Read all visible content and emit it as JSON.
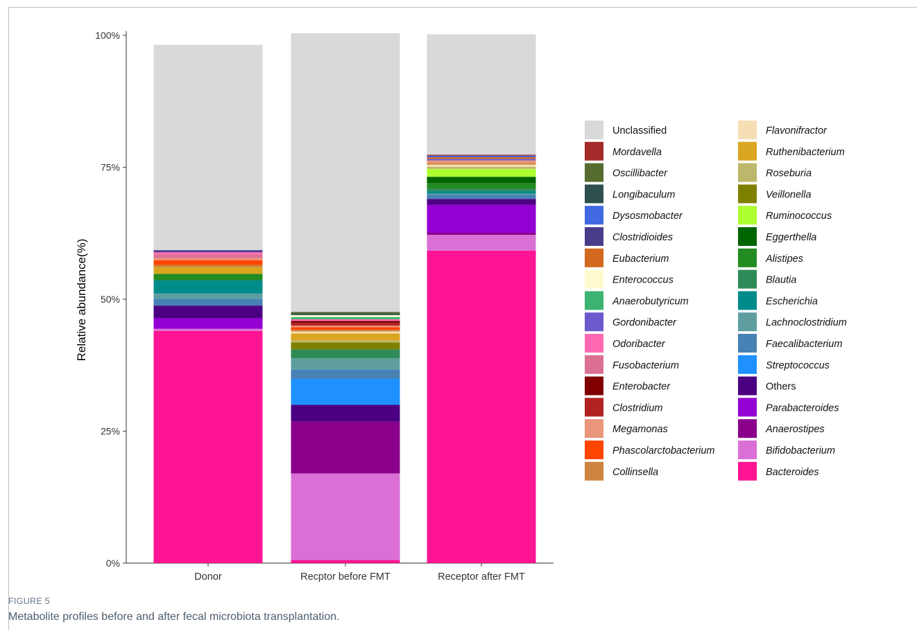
{
  "figure": {
    "label": "FIGURE 5",
    "caption": "Metabolite profiles before and after fecal microbiota transplantation."
  },
  "chart_data": {
    "type": "bar",
    "stacked": true,
    "title": "",
    "xlabel": "",
    "ylabel": "Relative abundance(%)",
    "ylim": [
      0,
      100
    ],
    "yticks": [
      0,
      25,
      50,
      75,
      100
    ],
    "ytick_labels": [
      "0%",
      "25%",
      "50%",
      "75%",
      "100%"
    ],
    "legend_position": "right",
    "categories": [
      "Donor",
      "Recptor before FMT",
      "Receptor after FMT"
    ],
    "series": [
      {
        "name": "Bacteroides",
        "color": "#FF1493",
        "italic": true,
        "values": [
          44.0,
          0.6,
          59.2
        ]
      },
      {
        "name": "Bifidobacterium",
        "color": "#DA70D6",
        "italic": true,
        "values": [
          0.4,
          16.4,
          3.0
        ]
      },
      {
        "name": "Anaerostipes",
        "color": "#8B008B",
        "italic": true,
        "values": [
          0.0,
          9.8,
          0.4
        ]
      },
      {
        "name": "Parabacteroides",
        "color": "#9400D3",
        "italic": true,
        "values": [
          2.0,
          0.0,
          5.3
        ]
      },
      {
        "name": "Others",
        "color": "#4B0082",
        "italic": false,
        "values": [
          2.4,
          3.2,
          1.1
        ]
      },
      {
        "name": "Streptococcus",
        "color": "#1E90FF",
        "italic": true,
        "values": [
          0.0,
          4.9,
          0.0
        ]
      },
      {
        "name": "Faecalibacterium",
        "color": "#4682B4",
        "italic": true,
        "values": [
          1.3,
          1.8,
          0.8
        ]
      },
      {
        "name": "Lachnoclostridium",
        "color": "#5F9EA0",
        "italic": true,
        "values": [
          1.0,
          2.1,
          0.2
        ]
      },
      {
        "name": "Escherichia",
        "color": "#008B8B",
        "italic": true,
        "values": [
          2.5,
          0.0,
          0.5
        ]
      },
      {
        "name": "Blautia",
        "color": "#2E8B57",
        "italic": true,
        "values": [
          0.0,
          1.7,
          0.5
        ]
      },
      {
        "name": "Alistipes",
        "color": "#228B22",
        "italic": true,
        "values": [
          1.2,
          0.0,
          1.0
        ]
      },
      {
        "name": "Eggerthella",
        "color": "#006400",
        "italic": true,
        "values": [
          0.0,
          0.0,
          1.2
        ]
      },
      {
        "name": "Ruminococcus",
        "color": "#ADFF2F",
        "italic": true,
        "values": [
          0.0,
          0.0,
          1.5
        ]
      },
      {
        "name": "Veillonella",
        "color": "#808000",
        "italic": true,
        "values": [
          0.0,
          1.3,
          0.0
        ]
      },
      {
        "name": "Roseburia",
        "color": "#BDB76B",
        "italic": true,
        "values": [
          0.0,
          0.4,
          0.4
        ]
      },
      {
        "name": "Ruthenibacterium",
        "color": "#DAA520",
        "italic": true,
        "values": [
          1.3,
          1.3,
          0.0
        ]
      },
      {
        "name": "Flavonifractor",
        "color": "#F5DEB3",
        "italic": true,
        "values": [
          0.0,
          0.4,
          0.4
        ]
      },
      {
        "name": "Collinsella",
        "color": "#CD853F",
        "italic": true,
        "values": [
          0.4,
          0.3,
          0.3
        ]
      },
      {
        "name": "Phascolarctobacterium",
        "color": "#FF4500",
        "italic": true,
        "values": [
          0.9,
          0.5,
          0.0
        ]
      },
      {
        "name": "Megamonas",
        "color": "#E9967A",
        "italic": true,
        "values": [
          0.4,
          0.3,
          0.5
        ]
      },
      {
        "name": "Clostridium",
        "color": "#B22222",
        "italic": true,
        "values": [
          0.0,
          0.5,
          0.0
        ]
      },
      {
        "name": "Enterobacter",
        "color": "#800000",
        "italic": true,
        "values": [
          0.0,
          0.4,
          0.0
        ]
      },
      {
        "name": "Fusobacterium",
        "color": "#DB7093",
        "italic": true,
        "values": [
          0.7,
          0.0,
          0.0
        ]
      },
      {
        "name": "Odoribacter",
        "color": "#FF69B4",
        "italic": true,
        "values": [
          0.4,
          0.3,
          0.0
        ]
      },
      {
        "name": "Gordonibacter",
        "color": "#6A5ACD",
        "italic": true,
        "values": [
          0.0,
          0.0,
          0.3
        ]
      },
      {
        "name": "Anaerobutyricum",
        "color": "#3CB371",
        "italic": true,
        "values": [
          0.0,
          0.4,
          0.0
        ]
      },
      {
        "name": "Enterococcus",
        "color": "#FFFACD",
        "italic": true,
        "values": [
          0.0,
          0.4,
          0.0
        ]
      },
      {
        "name": "Eubacterium",
        "color": "#D2691E",
        "italic": true,
        "values": [
          0.0,
          0.0,
          0.3
        ]
      },
      {
        "name": "Clostridioides",
        "color": "#483D8B",
        "italic": true,
        "values": [
          0.4,
          0.0,
          0.0
        ]
      },
      {
        "name": "Dysosmobacter",
        "color": "#4169E1",
        "italic": true,
        "values": [
          0.0,
          0.0,
          0.3
        ]
      },
      {
        "name": "Longibaculum",
        "color": "#2F4F4F",
        "italic": true,
        "values": [
          0.0,
          0.3,
          0.0
        ]
      },
      {
        "name": "Oscillibacter",
        "color": "#556B2F",
        "italic": true,
        "values": [
          0.0,
          0.3,
          0.0
        ]
      },
      {
        "name": "Mordavella",
        "color": "#A52A2A",
        "italic": true,
        "values": [
          0.0,
          0.0,
          0.2
        ]
      },
      {
        "name": "Unclassified",
        "color": "#D9D9D9",
        "italic": false,
        "values": [
          38.9,
          52.8,
          22.8
        ]
      }
    ],
    "legend_order": [
      "Unclassified",
      "Mordavella",
      "Oscillibacter",
      "Longibaculum",
      "Dysosmobacter",
      "Clostridioides",
      "Eubacterium",
      "Enterococcus",
      "Anaerobutyricum",
      "Gordonibacter",
      "Odoribacter",
      "Fusobacterium",
      "Enterobacter",
      "Clostridium",
      "Megamonas",
      "Phascolarctobacterium",
      "Collinsella",
      "Flavonifractor",
      "Ruthenibacterium",
      "Roseburia",
      "Veillonella",
      "Ruminococcus",
      "Eggerthella",
      "Alistipes",
      "Blautia",
      "Escherichia",
      "Lachnoclostridium",
      "Faecalibacterium",
      "Streptococcus",
      "Others",
      "Parabacteroides",
      "Anaerostipes",
      "Bifidobacterium",
      "Bacteroides"
    ]
  }
}
